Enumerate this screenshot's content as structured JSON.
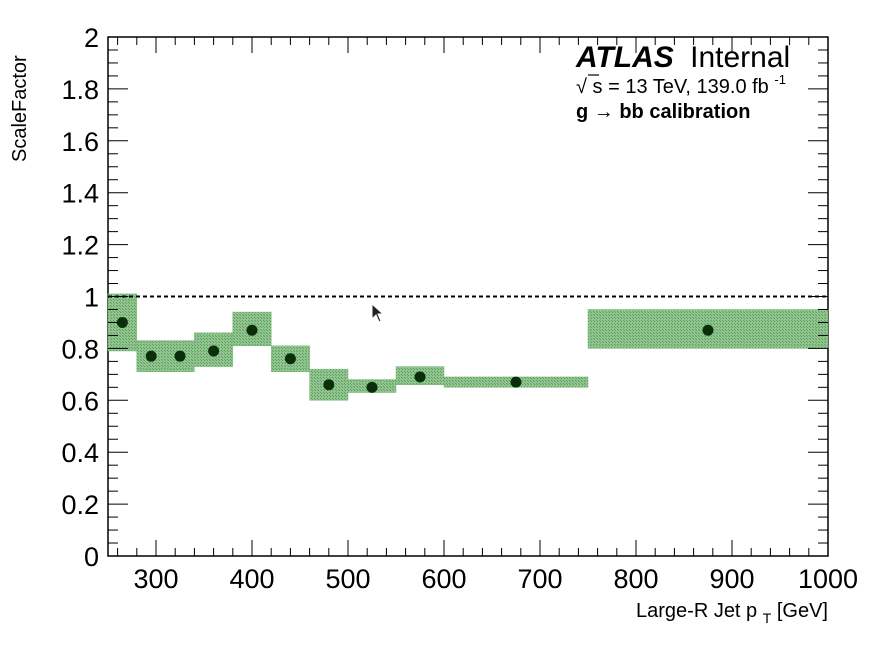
{
  "chart_data": {
    "type": "scatter",
    "title": "",
    "xlabel": "Large-R Jet p",
    "xlabel_sub": "T",
    "xlabel_unit": " [GeV]",
    "ylabel": "ScaleFactor",
    "xlim": [
      250,
      1000
    ],
    "ylim": [
      0,
      2
    ],
    "x_ticks": [
      300,
      400,
      500,
      600,
      700,
      800,
      900,
      1000
    ],
    "y_ticks": [
      0,
      0.2,
      0.4,
      0.6,
      0.8,
      1,
      1.2,
      1.4,
      1.6,
      1.8,
      2
    ],
    "y_tick_labels": [
      "0",
      "0.2",
      "0.4",
      "0.6",
      "0.8",
      "1",
      "1.2",
      "1.4",
      "1.6",
      "1.8",
      "2"
    ],
    "reference_line": 1.0,
    "colors": {
      "band": "#6aaa6a",
      "marker": "#0b2e0b",
      "reference": "#000000"
    },
    "bins": [
      {
        "x_low": 250,
        "x_high": 280,
        "x": 265,
        "value": 0.9,
        "band_low": 0.79,
        "band_high": 1.01
      },
      {
        "x_low": 280,
        "x_high": 310,
        "x": 295,
        "value": 0.77,
        "band_low": 0.71,
        "band_high": 0.83
      },
      {
        "x_low": 310,
        "x_high": 340,
        "x": 325,
        "value": 0.77,
        "band_low": 0.71,
        "band_high": 0.83
      },
      {
        "x_low": 340,
        "x_high": 380,
        "x": 360,
        "value": 0.79,
        "band_low": 0.73,
        "band_high": 0.86
      },
      {
        "x_low": 380,
        "x_high": 420,
        "x": 400,
        "value": 0.87,
        "band_low": 0.81,
        "band_high": 0.94
      },
      {
        "x_low": 420,
        "x_high": 460,
        "x": 440,
        "value": 0.76,
        "band_low": 0.71,
        "band_high": 0.81
      },
      {
        "x_low": 460,
        "x_high": 500,
        "x": 480,
        "value": 0.66,
        "band_low": 0.6,
        "band_high": 0.72
      },
      {
        "x_low": 500,
        "x_high": 550,
        "x": 525,
        "value": 0.65,
        "band_low": 0.63,
        "band_high": 0.68
      },
      {
        "x_low": 550,
        "x_high": 600,
        "x": 575,
        "value": 0.69,
        "band_low": 0.66,
        "band_high": 0.73
      },
      {
        "x_low": 600,
        "x_high": 750,
        "x": 675,
        "value": 0.67,
        "band_low": 0.65,
        "band_high": 0.69
      },
      {
        "x_low": 750,
        "x_high": 1000,
        "x": 875,
        "value": 0.87,
        "band_low": 0.8,
        "band_high": 0.95
      }
    ]
  },
  "labels": {
    "atlas": "ATLAS",
    "internal": "Internal",
    "sqrt": "√",
    "energy_text": "s = 13 TeV, 139.0 fb",
    "energy_sup": "-1",
    "calibration": "g → bb calibration"
  }
}
